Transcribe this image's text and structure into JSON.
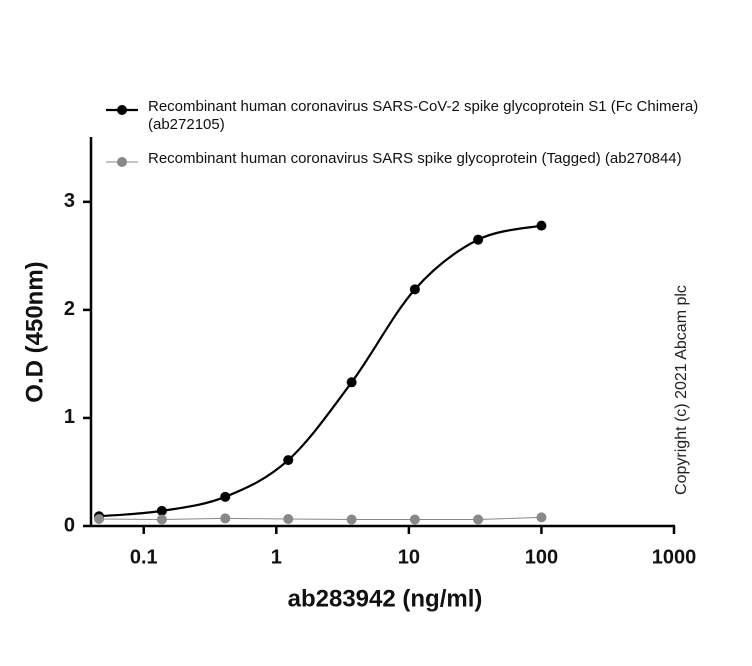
{
  "chart_data": {
    "type": "line",
    "x_label": "ab283942 (ng/ml)",
    "y_label": "O.D (450nm)",
    "annotation": "Copyright (c) 2021 Abcam plc",
    "x": [
      0.046,
      0.137,
      0.412,
      1.23,
      3.7,
      11.1,
      33.3,
      100
    ],
    "xscale": "log",
    "xlim": [
      0.04,
      1000
    ],
    "xticks": [
      0.1,
      1,
      10,
      100,
      1000
    ],
    "ylim": [
      0,
      3.6
    ],
    "yticks": [
      0,
      1,
      2,
      3
    ],
    "legend": "upper left",
    "series": [
      {
        "name": "Recombinant human coronavirus SARS-CoV-2 spike glycoprotein S1 (Fc Chimera) (ab272105)",
        "color": "#000000",
        "smooth": true,
        "values": [
          0.09,
          0.14,
          0.27,
          0.61,
          1.33,
          2.19,
          2.65,
          2.78
        ]
      },
      {
        "name": "Recombinant human coronavirus SARS spike glycoprotein (Tagged) (ab270844)",
        "color": "#888888",
        "smooth": false,
        "values": [
          0.065,
          0.06,
          0.07,
          0.065,
          0.06,
          0.06,
          0.06,
          0.08
        ]
      }
    ]
  }
}
